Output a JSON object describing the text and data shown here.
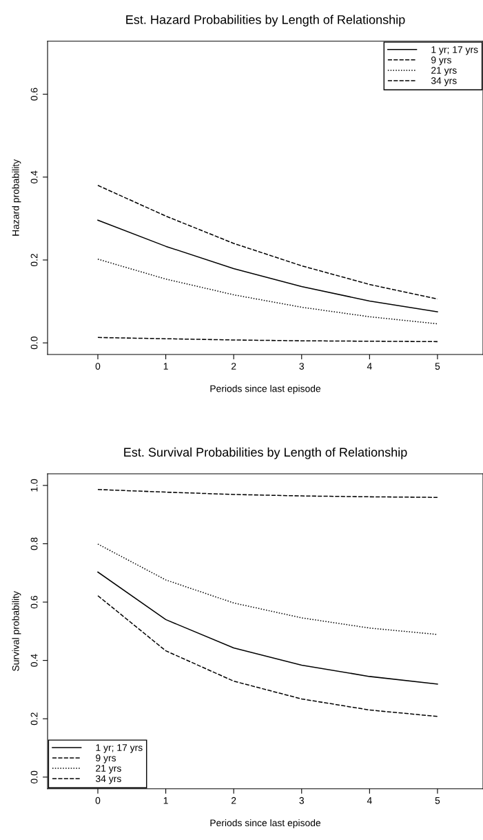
{
  "chart_data": [
    {
      "type": "line",
      "title": "Est. Hazard Probabilities by Length of Relationship",
      "xlabel": "Periods since last episode",
      "ylabel": "Hazard probability",
      "x": [
        0,
        1,
        2,
        3,
        4,
        5
      ],
      "xlim": [
        -0.74,
        5.67
      ],
      "xticks": [
        0,
        1,
        2,
        3,
        4,
        5
      ],
      "ylim": [
        -0.028,
        0.728
      ],
      "yticks": [
        {
          "value": 0,
          "label": "0.0"
        },
        {
          "value": 0.2,
          "label": "0.2"
        },
        {
          "value": 0.4,
          "label": "0.4"
        },
        {
          "value": 0.6,
          "label": "0.6"
        }
      ],
      "legend": "top right",
      "grid": false,
      "marker": "none",
      "series": [
        {
          "name": "1 yr; 17 yrs",
          "color": "#000000",
          "line_style": "solid",
          "values": [
            0.296,
            0.233,
            0.179,
            0.136,
            0.101,
            0.075
          ]
        },
        {
          "name": "9 yrs",
          "color": "#000000",
          "line_style": "dashed",
          "values": [
            0.38,
            0.306,
            0.24,
            0.186,
            0.141,
            0.106
          ]
        },
        {
          "name": "21 yrs",
          "color": "#000000",
          "line_style": "dotted",
          "values": [
            0.202,
            0.154,
            0.116,
            0.086,
            0.063,
            0.046
          ]
        },
        {
          "name": "34 yrs",
          "color": "#000000",
          "line_style": "dashed",
          "values": [
            0.013,
            0.01,
            0.007,
            0.005,
            0.004,
            0.003
          ]
        }
      ]
    },
    {
      "type": "line",
      "title": "Est. Survival Probabilities by Length of Relationship",
      "xlabel": "Periods since last episode",
      "ylabel": "Survival probability",
      "x": [
        0,
        1,
        2,
        3,
        4,
        5
      ],
      "xlim": [
        -0.74,
        5.67
      ],
      "xticks": [
        0,
        1,
        2,
        3,
        4,
        5
      ],
      "ylim": [
        -0.04,
        1.04
      ],
      "yticks": [
        {
          "value": 0,
          "label": "0.0"
        },
        {
          "value": 0.2,
          "label": "0.2"
        },
        {
          "value": 0.4,
          "label": "0.4"
        },
        {
          "value": 0.6,
          "label": "0.6"
        },
        {
          "value": 0.8,
          "label": "0.8"
        },
        {
          "value": 1,
          "label": "1.0"
        }
      ],
      "legend": "bottom left",
      "grid": false,
      "marker": "none",
      "series": [
        {
          "name": "1 yr; 17 yrs",
          "color": "#000000",
          "line_style": "solid",
          "values": [
            0.703,
            0.54,
            0.443,
            0.384,
            0.345,
            0.319
          ]
        },
        {
          "name": "9 yrs",
          "color": "#000000",
          "line_style": "dashed",
          "values": [
            0.622,
            0.433,
            0.329,
            0.268,
            0.23,
            0.208
          ]
        },
        {
          "name": "21 yrs",
          "color": "#000000",
          "line_style": "dotted",
          "values": [
            0.799,
            0.676,
            0.597,
            0.546,
            0.511,
            0.489
          ]
        },
        {
          "name": "34 yrs",
          "color": "#000000",
          "line_style": "dashed",
          "values": [
            0.986,
            0.977,
            0.969,
            0.964,
            0.961,
            0.959
          ]
        }
      ]
    }
  ]
}
